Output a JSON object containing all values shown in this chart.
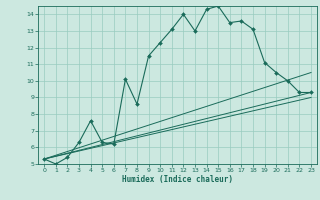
{
  "title": "",
  "xlabel": "Humidex (Indice chaleur)",
  "xlim": [
    -0.5,
    23.5
  ],
  "ylim": [
    5,
    14.5
  ],
  "xticks": [
    0,
    1,
    2,
    3,
    4,
    5,
    6,
    7,
    8,
    9,
    10,
    11,
    12,
    13,
    14,
    15,
    16,
    17,
    18,
    19,
    20,
    21,
    22,
    23
  ],
  "yticks": [
    5,
    6,
    7,
    8,
    9,
    10,
    11,
    12,
    13,
    14
  ],
  "bg_color": "#cce8e0",
  "line_color": "#1a6b5a",
  "grid_color": "#99ccc0",
  "main_line": [
    [
      0,
      5.3
    ],
    [
      1,
      5.0
    ],
    [
      2,
      5.4
    ],
    [
      3,
      6.3
    ],
    [
      4,
      7.6
    ],
    [
      5,
      6.3
    ],
    [
      6,
      6.2
    ],
    [
      7,
      10.1
    ],
    [
      8,
      8.6
    ],
    [
      9,
      11.5
    ],
    [
      10,
      12.3
    ],
    [
      11,
      13.1
    ],
    [
      12,
      14.0
    ],
    [
      13,
      13.0
    ],
    [
      14,
      14.3
    ],
    [
      15,
      14.5
    ],
    [
      16,
      13.5
    ],
    [
      17,
      13.6
    ],
    [
      18,
      13.1
    ],
    [
      19,
      11.1
    ],
    [
      20,
      10.5
    ],
    [
      21,
      10.0
    ],
    [
      22,
      9.3
    ],
    [
      23,
      9.3
    ]
  ],
  "line2": [
    [
      0,
      5.3
    ],
    [
      23,
      10.5
    ]
  ],
  "line3": [
    [
      0,
      5.3
    ],
    [
      23,
      9.3
    ]
  ],
  "line4": [
    [
      0,
      5.3
    ],
    [
      23,
      9.0
    ]
  ]
}
